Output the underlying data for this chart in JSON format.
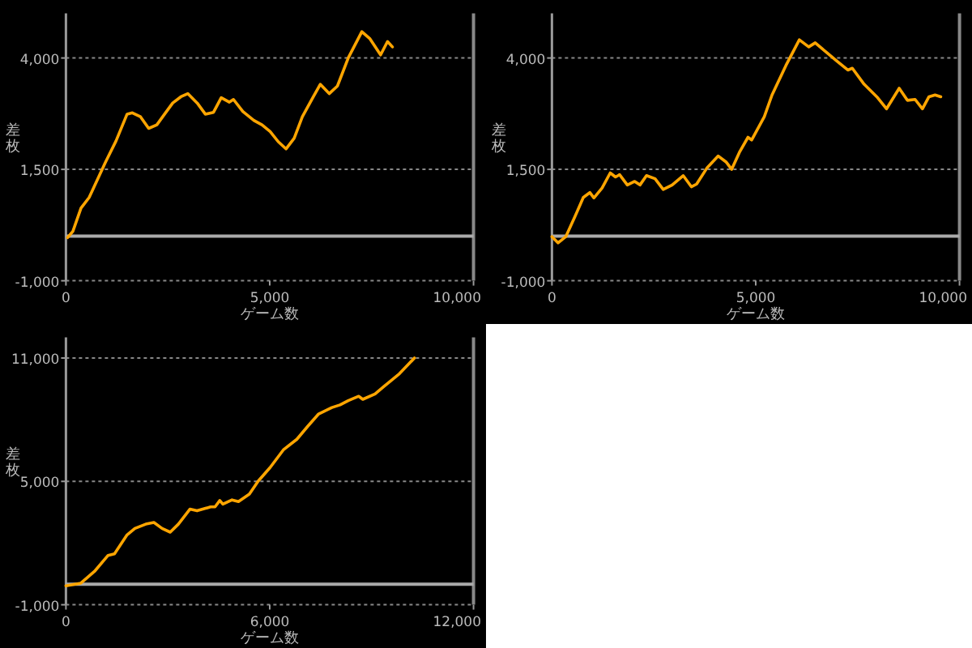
{
  "chart_data": [
    {
      "type": "line",
      "xlabel": "ゲーム数",
      "ylabel": "差枚",
      "grid": "y",
      "xlim": [
        0,
        10000
      ],
      "ylim": [
        -1000,
        5000
      ],
      "xticks": [
        {
          "value": 0,
          "label": "0"
        },
        {
          "value": 5000,
          "label": "5,000"
        },
        {
          "value": 10000,
          "label": "10,000"
        }
      ],
      "yticks": [
        {
          "value": -1000,
          "label": "-1,000"
        },
        {
          "value": 1500,
          "label": "1,500"
        },
        {
          "value": 4000,
          "label": "4,000"
        }
      ],
      "ref_lines": [
        {
          "axis": "y",
          "value": 0,
          "color": "#aaaaaa"
        }
      ],
      "x": [
        40,
        170,
        370,
        570,
        970,
        1230,
        1500,
        1630,
        1830,
        2030,
        2230,
        2420,
        2620,
        2820,
        2990,
        3220,
        3420,
        3620,
        3810,
        4010,
        4110,
        4340,
        4610,
        4810,
        5010,
        5210,
        5400,
        5600,
        5800,
        6070,
        6240,
        6460,
        6660,
        6930,
        7260,
        7460,
        7720,
        7890,
        8010
      ],
      "series": [
        {
          "color": "#ffa500",
          "values": [
            -30,
            110,
            630,
            870,
            1660,
            2140,
            2740,
            2770,
            2680,
            2420,
            2500,
            2740,
            2990,
            3130,
            3200,
            2990,
            2740,
            2780,
            3110,
            3010,
            3070,
            2800,
            2600,
            2500,
            2350,
            2120,
            1960,
            2200,
            2680,
            3130,
            3410,
            3200,
            3370,
            4010,
            4590,
            4430,
            4070,
            4370,
            4250
          ]
        }
      ]
    },
    {
      "type": "line",
      "xlabel": "ゲーム数",
      "ylabel": "差枚",
      "grid": "y",
      "xlim": [
        0,
        10000
      ],
      "ylim": [
        -1000,
        5000
      ],
      "xticks": [
        {
          "value": 0,
          "label": "0"
        },
        {
          "value": 5000,
          "label": "5,000"
        },
        {
          "value": 10000,
          "label": "10,000"
        }
      ],
      "yticks": [
        {
          "value": -1000,
          "label": "-1,000"
        },
        {
          "value": 1500,
          "label": "1,500"
        },
        {
          "value": 4000,
          "label": "4,000"
        }
      ],
      "ref_lines": [
        {
          "axis": "y",
          "value": 0,
          "color": "#aaaaaa"
        }
      ],
      "x": [
        0,
        150,
        340,
        570,
        770,
        930,
        1030,
        1230,
        1430,
        1560,
        1660,
        1850,
        2030,
        2160,
        2320,
        2530,
        2730,
        2950,
        3220,
        3420,
        3550,
        3810,
        4080,
        4280,
        4410,
        4610,
        4810,
        4900,
        5210,
        5400,
        5740,
        6070,
        6300,
        6460,
        6730,
        6990,
        7260,
        7370,
        7660,
        7990,
        8210,
        8520,
        8720,
        8910,
        9090,
        9250,
        9400,
        9540
      ],
      "series": [
        {
          "color": "#ffa500",
          "values": [
            -10,
            -150,
            -10,
            450,
            870,
            980,
            860,
            1080,
            1420,
            1330,
            1380,
            1150,
            1230,
            1150,
            1360,
            1290,
            1050,
            1150,
            1360,
            1110,
            1170,
            1540,
            1800,
            1660,
            1500,
            1900,
            2220,
            2160,
            2680,
            3170,
            3830,
            4410,
            4250,
            4340,
            4130,
            3930,
            3730,
            3770,
            3410,
            3110,
            2860,
            3320,
            3050,
            3070,
            2860,
            3130,
            3170,
            3130
          ]
        }
      ]
    },
    {
      "type": "line",
      "xlabel": "ゲーム数",
      "ylabel": "差枚",
      "grid": "y",
      "xlim": [
        0,
        12000
      ],
      "ylim": [
        -1000,
        12000
      ],
      "xticks": [
        {
          "value": 0,
          "label": "0"
        },
        {
          "value": 6000,
          "label": "6,000"
        },
        {
          "value": 12000,
          "label": "12,000"
        }
      ],
      "yticks": [
        {
          "value": -1000,
          "label": "-1,000"
        },
        {
          "value": 5000,
          "label": "5,000"
        },
        {
          "value": 11000,
          "label": "11,000"
        }
      ],
      "ref_lines": [
        {
          "axis": "y",
          "value": 0,
          "color": "#aaaaaa"
        }
      ],
      "x": [
        0,
        440,
        840,
        1240,
        1430,
        1800,
        2030,
        2350,
        2590,
        2830,
        3070,
        3310,
        3650,
        3860,
        4260,
        4390,
        4530,
        4620,
        4890,
        5080,
        5400,
        5660,
        6010,
        6400,
        6800,
        7120,
        7440,
        7830,
        8070,
        8310,
        8620,
        8740,
        9100,
        9340,
        9820,
        10260
      ],
      "series": [
        {
          "color": "#ffa500",
          "values": [
            -80,
            50,
            620,
            1400,
            1480,
            2400,
            2710,
            2920,
            3000,
            2710,
            2530,
            2920,
            3650,
            3570,
            3760,
            3760,
            4070,
            3890,
            4100,
            4020,
            4380,
            5010,
            5670,
            6530,
            7050,
            7680,
            8280,
            8590,
            8720,
            8930,
            9140,
            8990,
            9250,
            9590,
            10240,
            11000
          ]
        }
      ]
    }
  ]
}
